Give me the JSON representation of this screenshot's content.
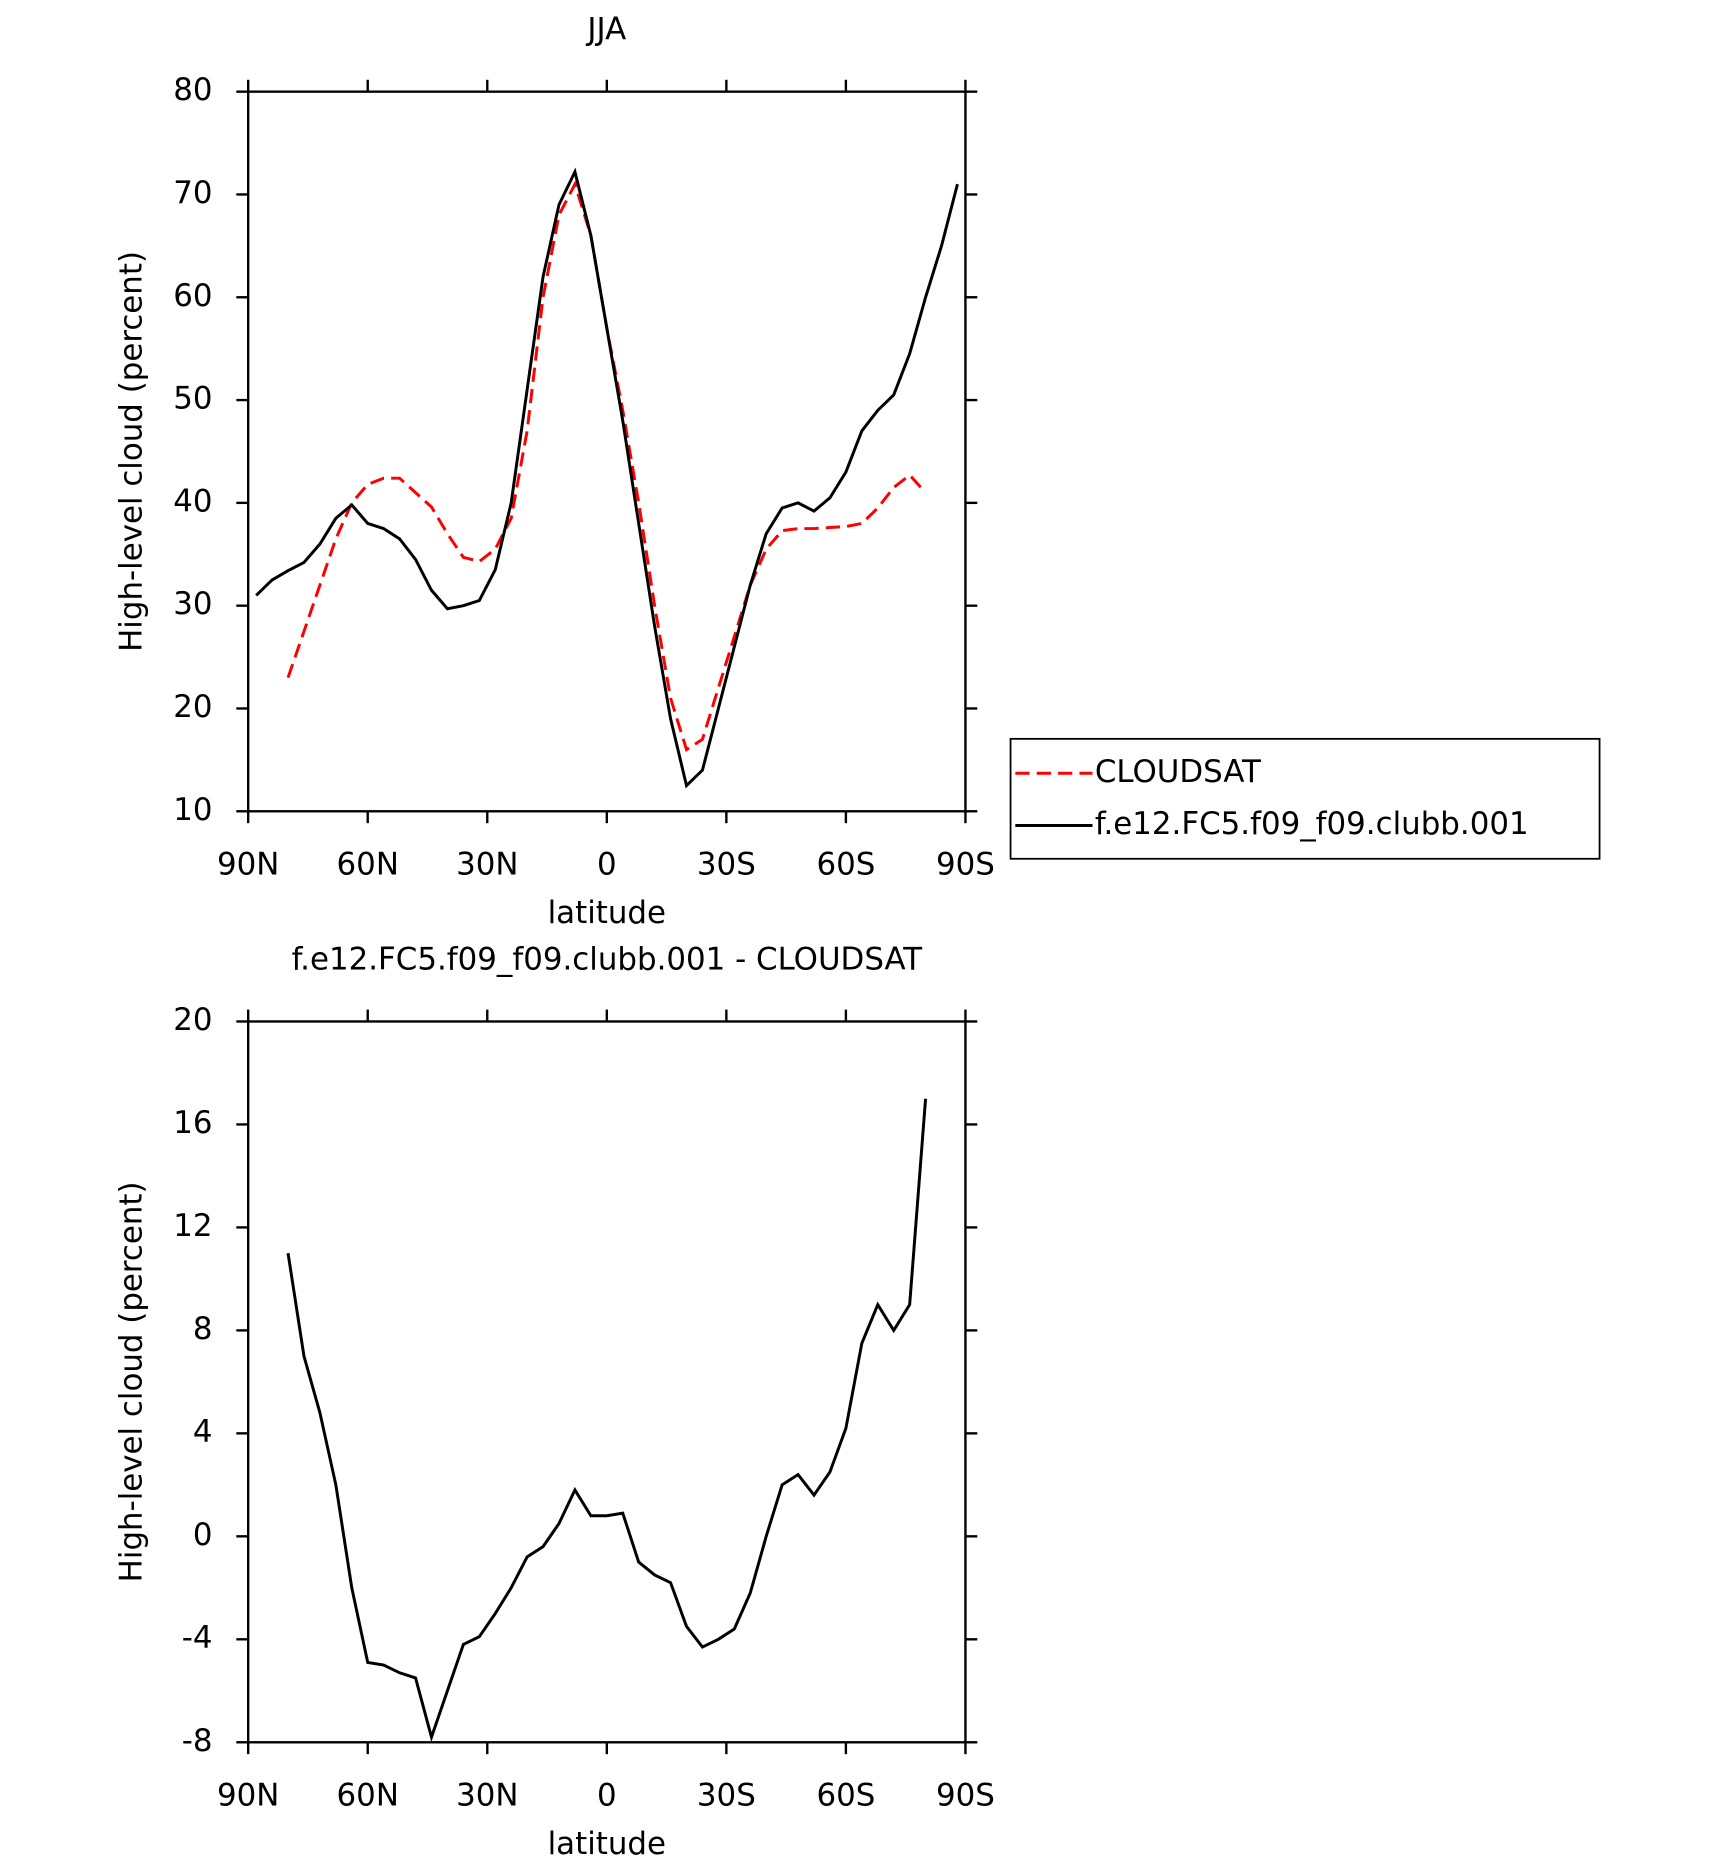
{
  "chart_data": [
    {
      "type": "line",
      "title": "JJA",
      "xlabel": "latitude",
      "ylabel": "High-level cloud (percent)",
      "x": [
        88,
        84,
        80,
        76,
        72,
        68,
        64,
        60,
        56,
        52,
        48,
        44,
        40,
        36,
        32,
        28,
        24,
        20,
        16,
        12,
        8,
        4,
        0,
        -4,
        -8,
        -12,
        -16,
        -20,
        -24,
        -28,
        -32,
        -36,
        -40,
        -44,
        -48,
        -52,
        -56,
        -60,
        -64,
        -68,
        -72,
        -76,
        -80,
        -84,
        -88
      ],
      "series": [
        {
          "name": "CLOUDSAT",
          "color": "#ff0000",
          "dash": true,
          "values": [
            null,
            null,
            23,
            27.5,
            32,
            36.5,
            40,
            41.8,
            42.4,
            42.4,
            41,
            39.6,
            37,
            34.7,
            34.3,
            35.5,
            38.5,
            47,
            60,
            68,
            71,
            66,
            57,
            49,
            40,
            30,
            21,
            16,
            17,
            22,
            27,
            32,
            35.5,
            37.3,
            37.5,
            37.5,
            37.6,
            37.7,
            38,
            39.5,
            41.5,
            42.7,
            41,
            null,
            null
          ]
        },
        {
          "name": "f.e12.FC5.f09_f09.clubb.001",
          "color": "#000000",
          "dash": false,
          "values": [
            31,
            32.5,
            33.4,
            34.2,
            36,
            38.5,
            39.8,
            38,
            37.5,
            36.5,
            34.5,
            31.5,
            29.7,
            30,
            30.5,
            33.5,
            40,
            51,
            62,
            69,
            72.2,
            66,
            57,
            48,
            38,
            28,
            19,
            12.5,
            14,
            20,
            26,
            32,
            37,
            39.5,
            40,
            39.2,
            40.5,
            43,
            47,
            49,
            50.5,
            54.5,
            60,
            65,
            71
          ]
        }
      ],
      "xlim": [
        90,
        -90
      ],
      "xticks": [
        {
          "value": 90,
          "label": "90N"
        },
        {
          "value": 60,
          "label": "60N"
        },
        {
          "value": 30,
          "label": "30N"
        },
        0,
        {
          "value": -30,
          "label": "30S"
        },
        {
          "value": -60,
          "label": "60S"
        },
        {
          "value": -90,
          "label": "90S"
        }
      ],
      "ylim": [
        10,
        80
      ],
      "yticks": [
        10,
        20,
        30,
        40,
        50,
        60,
        70,
        80
      ],
      "legend": "right"
    },
    {
      "type": "line",
      "title": "f.e12.FC5.f09_f09.clubb.001 - CLOUDSAT",
      "xlabel": "latitude",
      "ylabel": "High-level cloud (percent)",
      "x": [
        80,
        76,
        72,
        68,
        64,
        60,
        56,
        52,
        48,
        44,
        40,
        36,
        32,
        28,
        24,
        20,
        16,
        12,
        8,
        4,
        0,
        -4,
        -8,
        -12,
        -16,
        -20,
        -24,
        -28,
        -32,
        -36,
        -40,
        -44,
        -48,
        -52,
        -56,
        -60,
        -64,
        -68,
        -72,
        -76,
        -80
      ],
      "series": [
        {
          "color": "#000000",
          "dash": false,
          "values": [
            11,
            7,
            4.8,
            2,
            -2,
            -4.9,
            -5,
            -5.3,
            -5.5,
            -7.8,
            -6,
            -4.2,
            -3.9,
            -3,
            -2,
            -0.8,
            -0.4,
            0.5,
            1.8,
            0.8,
            0.8,
            0.9,
            -1,
            -1.5,
            -1.8,
            -3.5,
            -4.3,
            -4,
            -3.6,
            -2.2,
            0,
            2,
            2.4,
            1.6,
            2.5,
            4.2,
            7.5,
            9,
            8,
            9,
            17
          ]
        }
      ],
      "xlim": [
        90,
        -90
      ],
      "xticks": [
        {
          "value": 90,
          "label": "90N"
        },
        {
          "value": 60,
          "label": "60N"
        },
        {
          "value": 30,
          "label": "30N"
        },
        0,
        {
          "value": -30,
          "label": "30S"
        },
        {
          "value": -60,
          "label": "60S"
        },
        {
          "value": -90,
          "label": "90S"
        }
      ],
      "ylim": [
        -8,
        20
      ],
      "yticks": [
        -8,
        -4,
        0,
        4,
        8,
        12,
        16,
        20
      ]
    }
  ]
}
